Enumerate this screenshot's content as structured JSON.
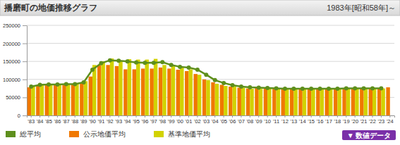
{
  "chart_data": {
    "type": "bar",
    "title": "播磨町の地価推移グラフ",
    "subtitle": "1983年[昭和58年]～",
    "annotations": [
      "▼ 数値データ"
    ],
    "categories": [
      "'83",
      "'84",
      "'85",
      "'86",
      "'87",
      "'88",
      "'89",
      "'90",
      "'91",
      "'92",
      "'93",
      "'94",
      "'95",
      "'96",
      "'97",
      "'98",
      "'99",
      "'00",
      "'01",
      "'02",
      "'03",
      "'04",
      "'05",
      "'06",
      "'07",
      "'08",
      "'09",
      "'10",
      "'11",
      "'12",
      "'13",
      "'14",
      "'15",
      "'16",
      "'17",
      "'18",
      "'19",
      "'20",
      "'21",
      "'22",
      "'23",
      "'24"
    ],
    "series": [
      {
        "name": "総平均",
        "type": "line",
        "marker": "circle",
        "color": "#5e8f1c",
        "values": [
          80000,
          85000,
          86000,
          86000,
          87000,
          87000,
          92000,
          127000,
          145000,
          153000,
          152000,
          150000,
          147000,
          146000,
          146000,
          148000,
          140000,
          135000,
          133000,
          127000,
          113000,
          98000,
          90000,
          84000,
          80000,
          78000,
          77000,
          76000,
          75000,
          74000,
          74000,
          74000,
          74000,
          74000,
          74000,
          74000,
          75000,
          75000,
          75000,
          75000,
          75000,
          null
        ]
      },
      {
        "name": "公示地価平均",
        "type": "bar",
        "color": "#f07800",
        "values": [
          78000,
          83000,
          84000,
          85000,
          85000,
          86000,
          90000,
          108000,
          140000,
          140000,
          137000,
          128000,
          128000,
          130000,
          130000,
          133000,
          130000,
          127000,
          123000,
          115000,
          100000,
          92000,
          85000,
          80000,
          77000,
          75000,
          76000,
          75000,
          74000,
          73000,
          73000,
          73000,
          73000,
          73000,
          73000,
          73000,
          74000,
          74000,
          74000,
          74000,
          74000,
          78000
        ]
      },
      {
        "name": "基準地価平均",
        "type": "bar",
        "color": "#d2d200",
        "values": [
          82000,
          86000,
          87000,
          87000,
          88000,
          88000,
          95000,
          140000,
          150000,
          158000,
          152000,
          156000,
          155000,
          155000,
          157000,
          140000,
          137000,
          134000,
          128000,
          113000,
          98000,
          88000,
          82000,
          80000,
          77000,
          74000,
          74000,
          75000,
          75000,
          74000,
          74000,
          75000,
          75000,
          75000,
          75000,
          75000,
          75000,
          75000,
          75000,
          75000,
          75000,
          null
        ]
      }
    ],
    "ylim": [
      0,
      250000
    ],
    "yticks": [
      0,
      50000,
      100000,
      150000,
      200000,
      250000
    ],
    "grid": true,
    "legend": "bottom"
  }
}
